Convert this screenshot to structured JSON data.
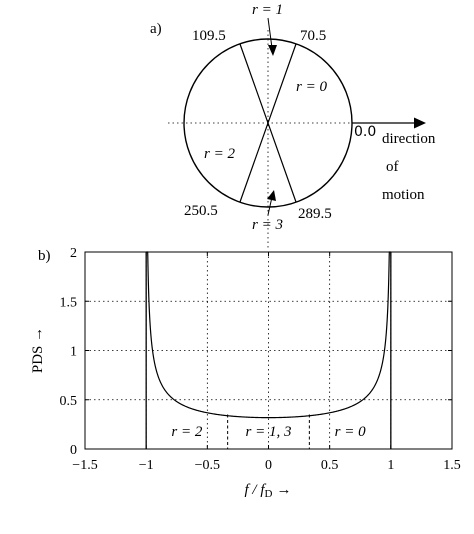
{
  "panel_a": {
    "label": "a)",
    "angles_deg": [
      0.0,
      70.5,
      109.5,
      250.5,
      289.5
    ],
    "angle_labels": {
      "a0": "0.0",
      "a70": "70.5",
      "a109": "109.5",
      "a250": "250.5",
      "a289": "289.5"
    },
    "region_labels": {
      "r1": "r = 1",
      "r0": "r = 0",
      "r2": "r = 2",
      "r3": "r = 3"
    },
    "motion_label": [
      "direction",
      "of",
      "motion"
    ]
  },
  "panel_b": {
    "label": "b)"
  },
  "chart_data": {
    "type": "line",
    "xlabel": "f / f",
    "xlabel_sub": "D",
    "xlabel_arrow": "→",
    "ylabel": "PDS →",
    "xlim": [
      -1.5,
      1.5
    ],
    "ylim": [
      0,
      2
    ],
    "xticks": [
      -1.5,
      -1,
      -0.5,
      0,
      0.5,
      1,
      1.5
    ],
    "xtick_labels": [
      "−1.5",
      "−1",
      "−0.5",
      "0",
      "0.5",
      "1",
      "1.5"
    ],
    "yticks": [
      0,
      0.5,
      1,
      1.5,
      2
    ],
    "ytick_labels": [
      "0",
      "0.5",
      "1",
      "1.5",
      "2"
    ],
    "grid": true,
    "curve": "1/(pi*sqrt(1-x^2))",
    "region_boundaries": [
      -0.334,
      0.334
    ],
    "region_labels": [
      "r = 2",
      "r = 1, 3",
      "r = 0"
    ]
  }
}
